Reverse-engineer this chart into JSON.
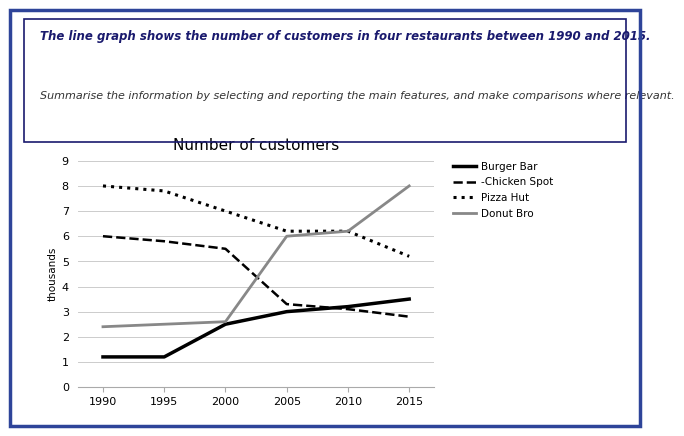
{
  "title": "Number of customers",
  "ylabel": "thousands",
  "years": [
    1990,
    1995,
    2000,
    2005,
    2010,
    2015
  ],
  "series": {
    "Burger Bar": {
      "values": [
        1.2,
        1.2,
        2.5,
        3.0,
        3.2,
        3.5
      ],
      "color": "#000000",
      "linestyle": "solid",
      "linewidth": 2.5
    },
    "-Chicken Spot": {
      "values": [
        6.0,
        5.8,
        5.5,
        3.3,
        3.1,
        2.8
      ],
      "color": "#000000",
      "linestyle": "dashed",
      "linewidth": 1.8
    },
    "Pizza Hut": {
      "values": [
        8.0,
        7.8,
        7.0,
        6.2,
        6.2,
        5.2
      ],
      "color": "#000000",
      "linestyle": "dotted",
      "linewidth": 2.2
    },
    "Donut Bro": {
      "values": [
        2.4,
        2.5,
        2.6,
        6.0,
        6.2,
        8.0
      ],
      "color": "#888888",
      "linestyle": "solid",
      "linewidth": 2.0
    }
  },
  "ylim": [
    0,
    9
  ],
  "yticks": [
    0,
    1,
    2,
    3,
    4,
    5,
    6,
    7,
    8,
    9
  ],
  "xticks": [
    1990,
    1995,
    2000,
    2005,
    2010,
    2015
  ],
  "header_bold": "The line graph shows the number of customers in four restaurants between 1990 and 2015.",
  "header_italic": "Summarise the information by selecting and reporting the main features, and make comparisons where relevant.",
  "bg_color": "#ffffff",
  "outer_border_color": "#2e4499",
  "inner_border_color": "#1a1a6e",
  "text_box_border_color": "#1a1a6e"
}
